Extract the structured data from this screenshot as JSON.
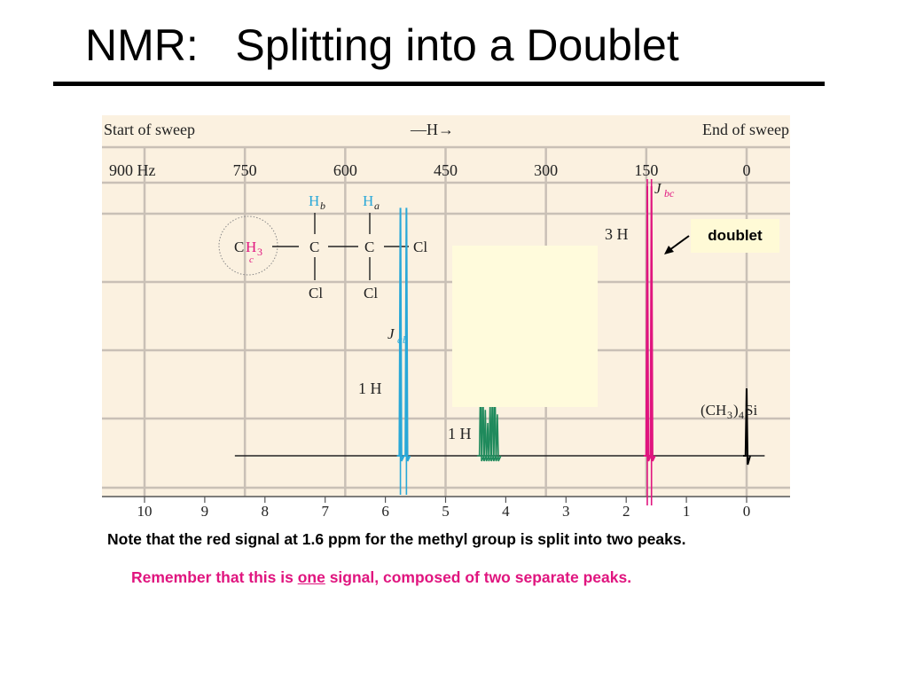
{
  "slide": {
    "title": "NMR:   Splitting into a Doublet",
    "note_black": "Note that the red signal at 1.6 ppm for the methyl group is split into two peaks.",
    "note_red_before": "Remember that this is ",
    "note_red_emph": "one",
    "note_red_after": " signal, composed of two separate peaks.",
    "callout": "doublet"
  },
  "colors": {
    "chart_bg": "#fbf1e0",
    "grid": "#c9c0b6",
    "red_signal": "#e0157f",
    "blue_signal": "#29a8d8",
    "green_signal": "#1f8a5c",
    "tms_signal": "#000000",
    "highlight": "#fffbdc"
  },
  "chart_data": {
    "type": "line",
    "header_left": "Start of sweep",
    "header_center": "—H→",
    "header_right": "End of sweep",
    "top_axis_label_unit": "Hz",
    "top_ticks": [
      "900 Hz",
      "750",
      "600",
      "450",
      "300",
      "150",
      "0"
    ],
    "top_tick_values": [
      900,
      750,
      600,
      450,
      300,
      150,
      0
    ],
    "bottom_ticks": [
      "10",
      "9",
      "8",
      "7",
      "6",
      "5",
      "4",
      "3",
      "2",
      "1",
      "0"
    ],
    "bottom_tick_values": [
      10,
      9,
      8,
      7,
      6,
      5,
      4,
      3,
      2,
      1,
      0
    ],
    "xlim": [
      10,
      0
    ],
    "ylim": [
      0,
      1
    ],
    "baseline_range": [
      8.5,
      -0.3
    ],
    "signals": [
      {
        "name": "Ha",
        "ppm": 5.7,
        "lines": [
          5.75,
          5.65
        ],
        "height": 0.92,
        "color": "blue",
        "integration_label": "1 H",
        "coupling_label": "J",
        "coupling_sub": "ab"
      },
      {
        "name": "Hb",
        "ppm": 4.3,
        "lines": [
          4.42,
          4.38,
          4.34,
          4.3,
          4.26,
          4.22,
          4.18,
          4.14
        ],
        "height": 0.3,
        "color": "green",
        "integration_label": "1 H"
      },
      {
        "name": "CH3",
        "ppm": 1.6,
        "lines": [
          1.65,
          1.58
        ],
        "height": 1.0,
        "color": "red",
        "integration_label": "3 H",
        "coupling_label": "J",
        "coupling_sub": "bc"
      },
      {
        "name": "TMS",
        "ppm": 0.0,
        "lines": [
          0.0
        ],
        "height": 0.25,
        "color": "black",
        "label": "(CH3)4Si"
      }
    ],
    "structure": {
      "Hb": "H",
      "Hb_sub": "b",
      "Ha": "H",
      "Ha_sub": "a",
      "ch3_C": "C",
      "ch3_H": "H",
      "ch3_3": "3",
      "ch3_sub": "c",
      "c1": "C",
      "c2": "C",
      "cl_right": "Cl",
      "cl_bottom1": "Cl",
      "cl_bottom2": "Cl"
    }
  }
}
